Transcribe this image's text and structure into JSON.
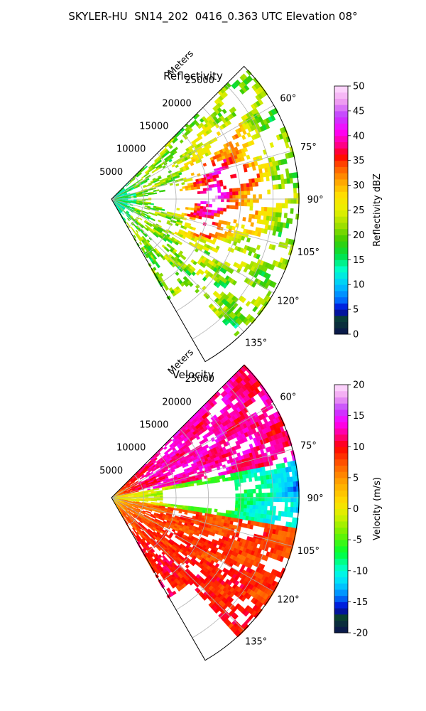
{
  "figure": {
    "title": "SKYLER-HU  SN14_202  0416_0.363 UTC Elevation 08°"
  },
  "chart_data": [
    {
      "type": "heatmap",
      "subtype": "polar-sector-radar-ppi",
      "title": "Reflectivity",
      "range_axis_label": "Meters",
      "range_ticks": [
        "5000",
        "10000",
        "15000",
        "20000",
        "25000"
      ],
      "range_tick_values": [
        5000,
        10000,
        15000,
        20000,
        25000
      ],
      "range_max": 29000,
      "azimuth_range_deg": [
        45,
        150
      ],
      "azimuth_ticks": [
        "60°",
        "75°",
        "90°",
        "105°",
        "120°",
        "135°"
      ],
      "azimuth_tick_values": [
        60,
        75,
        90,
        105,
        120,
        135
      ],
      "grid": true,
      "colorbar": {
        "label": "Reflectivity dBZ",
        "range": [
          0,
          50
        ],
        "ticks": [
          "0",
          "5",
          "10",
          "15",
          "20",
          "25",
          "30",
          "35",
          "40",
          "45",
          "50"
        ],
        "tick_values": [
          0,
          5,
          10,
          15,
          20,
          25,
          30,
          35,
          40,
          45,
          50
        ],
        "stops": [
          [
            0,
            "#0a1150"
          ],
          [
            3,
            "#0a4030"
          ],
          [
            5,
            "#0000d0"
          ],
          [
            7,
            "#0070ff"
          ],
          [
            10,
            "#00c8ff"
          ],
          [
            13,
            "#00ffcc"
          ],
          [
            16,
            "#00e040"
          ],
          [
            19,
            "#40cc00"
          ],
          [
            22,
            "#a0e000"
          ],
          [
            25,
            "#e8f000"
          ],
          [
            28,
            "#ffe000"
          ],
          [
            31,
            "#ffa000"
          ],
          [
            34,
            "#ff5000"
          ],
          [
            36,
            "#ff0000"
          ],
          [
            38,
            "#ff0080"
          ],
          [
            41,
            "#ff00ff"
          ],
          [
            44,
            "#c040ff"
          ],
          [
            47,
            "#f0a0f0"
          ],
          [
            50,
            "#ffe0ff"
          ]
        ]
      },
      "field": {
        "mean_value": 21,
        "coverage": 0.55,
        "hotspots": [
          {
            "az": 80,
            "r": 16000,
            "value": 36
          },
          {
            "az": 100,
            "r": 15000,
            "value": 36
          },
          {
            "az": 72,
            "r": 21000,
            "value": 30
          },
          {
            "az": 95,
            "r": 22000,
            "value": 28
          }
        ]
      }
    },
    {
      "type": "heatmap",
      "subtype": "polar-sector-radar-ppi",
      "title": "Velocity",
      "range_axis_label": "Meters",
      "range_ticks": [
        "5000",
        "10000",
        "15000",
        "20000",
        "25000"
      ],
      "range_tick_values": [
        5000,
        10000,
        15000,
        20000,
        25000
      ],
      "range_max": 29000,
      "azimuth_range_deg": [
        45,
        150
      ],
      "azimuth_ticks": [
        "60°",
        "75°",
        "90°",
        "105°",
        "120°",
        "135°"
      ],
      "azimuth_tick_values": [
        60,
        75,
        90,
        105,
        120,
        135
      ],
      "grid": true,
      "colorbar": {
        "label": "Velocity (m/s)",
        "range": [
          -20,
          20
        ],
        "ticks": [
          "-20",
          "-15",
          "-10",
          "-5",
          "0",
          "5",
          "10",
          "15",
          "20"
        ],
        "tick_values": [
          -20,
          -15,
          -10,
          -5,
          0,
          5,
          10,
          15,
          20
        ],
        "stops": [
          [
            -20,
            "#0a1150"
          ],
          [
            -17.5,
            "#0a4030"
          ],
          [
            -16,
            "#0000d0"
          ],
          [
            -14,
            "#0080ff"
          ],
          [
            -12,
            "#00d8ff"
          ],
          [
            -10,
            "#00ffdd"
          ],
          [
            -7,
            "#00ff30"
          ],
          [
            -4,
            "#70f000"
          ],
          [
            -1,
            "#d8f000"
          ],
          [
            1,
            "#ffe000"
          ],
          [
            4,
            "#ffaa00"
          ],
          [
            7,
            "#ff6000"
          ],
          [
            10,
            "#ff0000"
          ],
          [
            12,
            "#ff0090"
          ],
          [
            14,
            "#ff00ff"
          ],
          [
            16,
            "#c040ff"
          ],
          [
            18,
            "#f0a0f0"
          ],
          [
            20,
            "#ffe0ff"
          ]
        ]
      },
      "field": {
        "near_value": 0,
        "left_value": 8,
        "upper_right_value": 14,
        "right_value": -12,
        "coverage": 0.7
      }
    }
  ]
}
